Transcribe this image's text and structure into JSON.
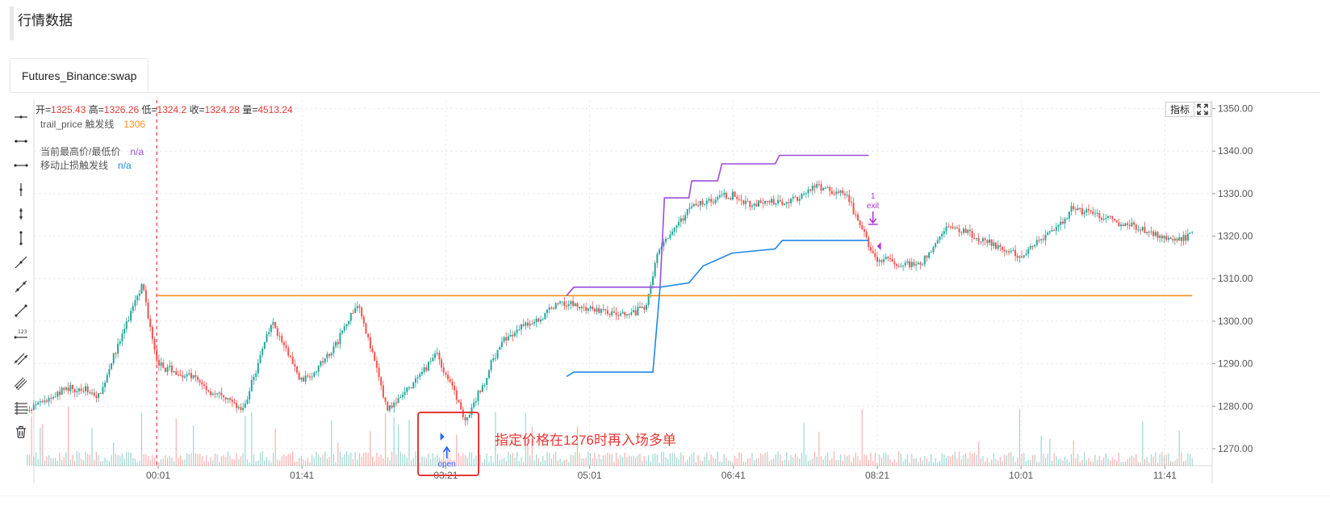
{
  "page": {
    "title": "行情数据"
  },
  "tabs": [
    {
      "label": "Futures_Binance:swap",
      "active": true
    }
  ],
  "toolbar": {
    "tools": [
      "horizontal-ray-icon",
      "horizontal-segment-icon",
      "horizontal-line-icon",
      "vertical-ray-icon",
      "vertical-segment-icon",
      "vertical-line-icon",
      "trend-ray-icon",
      "trend-segment-icon",
      "trend-line-icon",
      "price-label-icon",
      "parallel-channel-icon",
      "pitchfork-icon",
      "fib-levels-icon",
      "delete-icon"
    ]
  },
  "ohlcv": {
    "open_label": "开=",
    "open": "1325.43",
    "high_label": "高=",
    "high": "1326.26",
    "low_label": "低=",
    "low": "1324.2",
    "close_label": "收=",
    "close": "1324.28",
    "volume_label": "量=",
    "volume": "4513.24"
  },
  "indicators": [
    {
      "label": "trail_price 触发线",
      "value": "1306",
      "color": "#f5911e"
    },
    {
      "label": "当前最高价/最低价",
      "value": "n/a",
      "color": "#9b4ddb"
    },
    {
      "label": "移动止损触发线",
      "value": "n/a",
      "color": "#1e88e5"
    }
  ],
  "controls": {
    "indicator_button": "指标",
    "fullscreen_icon": "fullscreen-icon"
  },
  "annotation": {
    "text": "指定价格在1276时再入场多单",
    "color": "#e53935"
  },
  "markers": {
    "open_label": "open",
    "exit_count": "1",
    "exit_label": "exit"
  },
  "colors": {
    "up": "#26a69a",
    "down": "#ef5350",
    "trail": "#f5911e",
    "highlow": "#9b4ddb",
    "stop": "#1e88e5",
    "crosshair": "#f23645"
  },
  "chart_data": {
    "type": "candlestick",
    "x_ticks": [
      "00:01",
      "01:41",
      "03:21",
      "05:01",
      "06:41",
      "08:21",
      "10:01",
      "11:41"
    ],
    "y_ticks": [
      "1350.00",
      "1340.00",
      "1330.00",
      "1320.00",
      "1310.00",
      "1300.00",
      "1290.00",
      "1280.00",
      "1270.00"
    ],
    "ylim": [
      1266,
      1352
    ],
    "grid": true,
    "close_path": [
      {
        "t": "22:30",
        "v": 1279
      },
      {
        "t": "23:00",
        "v": 1285
      },
      {
        "t": "23:20",
        "v": 1282
      },
      {
        "t": "23:45",
        "v": 1305
      },
      {
        "t": "23:50",
        "v": 1308
      },
      {
        "t": "00:00",
        "v": 1291
      },
      {
        "t": "00:30",
        "v": 1285
      },
      {
        "t": "01:00",
        "v": 1279
      },
      {
        "t": "01:20",
        "v": 1300
      },
      {
        "t": "01:40",
        "v": 1286
      },
      {
        "t": "02:00",
        "v": 1292
      },
      {
        "t": "02:20",
        "v": 1305
      },
      {
        "t": "02:40",
        "v": 1279
      },
      {
        "t": "03:00",
        "v": 1286
      },
      {
        "t": "03:15",
        "v": 1293
      },
      {
        "t": "03:35",
        "v": 1276
      },
      {
        "t": "04:00",
        "v": 1295
      },
      {
        "t": "04:20",
        "v": 1300
      },
      {
        "t": "04:40",
        "v": 1304
      },
      {
        "t": "05:00",
        "v": 1303
      },
      {
        "t": "05:20",
        "v": 1301
      },
      {
        "t": "05:40",
        "v": 1303
      },
      {
        "t": "05:50",
        "v": 1318
      },
      {
        "t": "06:10",
        "v": 1326
      },
      {
        "t": "06:40",
        "v": 1330
      },
      {
        "t": "07:10",
        "v": 1327
      },
      {
        "t": "07:40",
        "v": 1332
      },
      {
        "t": "08:00",
        "v": 1329
      },
      {
        "t": "08:20",
        "v": 1314
      },
      {
        "t": "08:50",
        "v": 1313
      },
      {
        "t": "09:10",
        "v": 1322
      },
      {
        "t": "09:40",
        "v": 1318
      },
      {
        "t": "10:00",
        "v": 1316
      },
      {
        "t": "10:20",
        "v": 1321
      },
      {
        "t": "10:40",
        "v": 1327
      },
      {
        "t": "11:10",
        "v": 1323
      },
      {
        "t": "11:40",
        "v": 1320
      },
      {
        "t": "12:00",
        "v": 1320
      }
    ],
    "series": [
      {
        "name": "trail_price 触发线",
        "points": [
          {
            "t": "00:00",
            "v": 1306
          },
          {
            "t": "12:00",
            "v": 1306
          }
        ]
      },
      {
        "name": "当前最高价/最低价",
        "points": [
          {
            "t": "04:45",
            "v": 1306
          },
          {
            "t": "04:50",
            "v": 1308
          },
          {
            "t": "05:50",
            "v": 1308
          },
          {
            "t": "05:53",
            "v": 1329
          },
          {
            "t": "06:10",
            "v": 1329
          },
          {
            "t": "06:12",
            "v": 1333
          },
          {
            "t": "06:30",
            "v": 1333
          },
          {
            "t": "06:33",
            "v": 1337
          },
          {
            "t": "07:10",
            "v": 1337
          },
          {
            "t": "07:13",
            "v": 1339
          },
          {
            "t": "08:15",
            "v": 1339
          }
        ]
      },
      {
        "name": "移动止损触发线",
        "points": [
          {
            "t": "04:45",
            "v": 1287
          },
          {
            "t": "04:50",
            "v": 1288
          },
          {
            "t": "05:45",
            "v": 1288
          },
          {
            "t": "05:50",
            "v": 1308
          },
          {
            "t": "06:10",
            "v": 1309
          },
          {
            "t": "06:20",
            "v": 1313
          },
          {
            "t": "06:40",
            "v": 1316
          },
          {
            "t": "07:10",
            "v": 1317
          },
          {
            "t": "07:15",
            "v": 1319
          },
          {
            "t": "08:15",
            "v": 1319
          }
        ]
      }
    ],
    "markers": [
      {
        "type": "open",
        "t": "03:20",
        "price": 1273
      },
      {
        "type": "exit",
        "t": "08:18",
        "price": 1323
      }
    ]
  }
}
